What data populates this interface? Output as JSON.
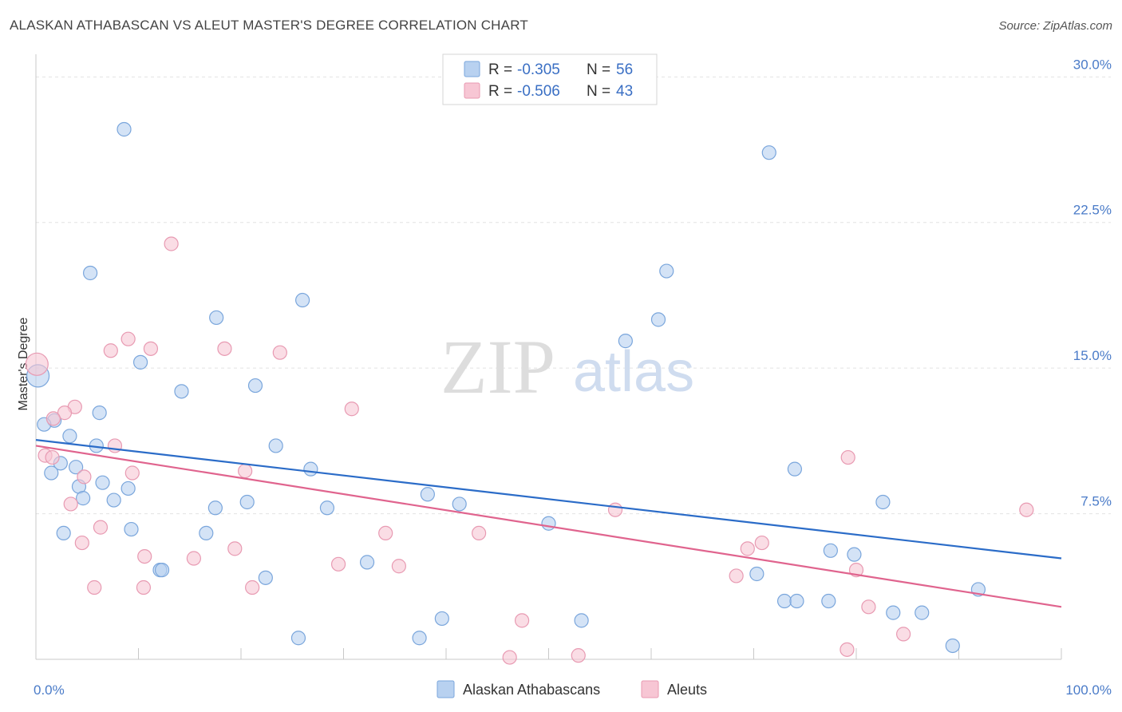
{
  "title": "ALASKAN ATHABASCAN VS ALEUT MASTER'S DEGREE CORRELATION CHART",
  "source": "Source: ZipAtlas.com",
  "watermark": {
    "zip": "ZIP",
    "atlas": "atlas"
  },
  "colors": {
    "athabascan_fill": "#b8d1f0",
    "athabascan_stroke": "#7aa6dc",
    "athabascan_line": "#2b6cc8",
    "aleut_fill": "#f7c6d4",
    "aleut_stroke": "#e89ab2",
    "aleut_line": "#e0648e",
    "grid": "#e2e2e2",
    "tick_text": "#4a7bc8"
  },
  "legend": {
    "rows": [
      {
        "r_label": "R = ",
        "r_value": "-0.305",
        "n_label": "N = ",
        "n_value": "56"
      },
      {
        "r_label": "R = ",
        "r_value": "-0.506",
        "n_label": "N = ",
        "n_value": "43"
      }
    ]
  },
  "bottom_legend": [
    "Alaskan Athabascans",
    "Aleuts"
  ],
  "chart_data": {
    "type": "scatter",
    "title": "ALASKAN ATHABASCAN VS ALEUT MASTER'S DEGREE CORRELATION CHART",
    "xlabel": "",
    "ylabel": "Master's Degree",
    "xlim": [
      0,
      100
    ],
    "ylim": [
      0,
      31
    ],
    "x_tick_labels": [
      "0.0%",
      "100.0%"
    ],
    "y_ticks": [
      7.5,
      15.0,
      22.5,
      30.0
    ],
    "y_tick_labels": [
      "7.5%",
      "15.0%",
      "22.5%",
      "30.0%"
    ],
    "grid": true,
    "legend_position": "top-center",
    "series": [
      {
        "name": "Alaskan Athabascans",
        "trend": {
          "x": [
            0,
            100
          ],
          "y": [
            11.3,
            5.2
          ]
        },
        "points": [
          {
            "x": 8.6,
            "y": 27.3
          },
          {
            "x": 71.5,
            "y": 26.1
          },
          {
            "x": 5.3,
            "y": 19.9
          },
          {
            "x": 61.5,
            "y": 20.0
          },
          {
            "x": 26.0,
            "y": 18.5
          },
          {
            "x": 17.6,
            "y": 17.6
          },
          {
            "x": 60.7,
            "y": 17.5
          },
          {
            "x": 57.5,
            "y": 16.4
          },
          {
            "x": 10.2,
            "y": 15.3
          },
          {
            "x": 0.2,
            "y": 14.6
          },
          {
            "x": 21.4,
            "y": 14.1
          },
          {
            "x": 14.2,
            "y": 13.8
          },
          {
            "x": 6.2,
            "y": 12.7
          },
          {
            "x": 1.8,
            "y": 12.3
          },
          {
            "x": 0.8,
            "y": 12.1
          },
          {
            "x": 3.3,
            "y": 11.5
          },
          {
            "x": 5.9,
            "y": 11.0
          },
          {
            "x": 23.4,
            "y": 11.0
          },
          {
            "x": 2.4,
            "y": 10.1
          },
          {
            "x": 3.9,
            "y": 9.9
          },
          {
            "x": 1.5,
            "y": 9.6
          },
          {
            "x": 26.8,
            "y": 9.8
          },
          {
            "x": 74.0,
            "y": 9.8
          },
          {
            "x": 6.5,
            "y": 9.1
          },
          {
            "x": 4.2,
            "y": 8.9
          },
          {
            "x": 9.0,
            "y": 8.8
          },
          {
            "x": 4.6,
            "y": 8.3
          },
          {
            "x": 7.6,
            "y": 8.2
          },
          {
            "x": 20.6,
            "y": 8.1
          },
          {
            "x": 38.2,
            "y": 8.5
          },
          {
            "x": 41.3,
            "y": 8.0
          },
          {
            "x": 82.6,
            "y": 8.1
          },
          {
            "x": 17.5,
            "y": 7.8
          },
          {
            "x": 28.4,
            "y": 7.8
          },
          {
            "x": 50.0,
            "y": 7.0
          },
          {
            "x": 2.7,
            "y": 6.5
          },
          {
            "x": 9.3,
            "y": 6.7
          },
          {
            "x": 16.6,
            "y": 6.5
          },
          {
            "x": 77.5,
            "y": 5.6
          },
          {
            "x": 79.8,
            "y": 5.4
          },
          {
            "x": 32.3,
            "y": 5.0
          },
          {
            "x": 12.1,
            "y": 4.6
          },
          {
            "x": 12.3,
            "y": 4.6
          },
          {
            "x": 22.4,
            "y": 4.2
          },
          {
            "x": 70.3,
            "y": 4.4
          },
          {
            "x": 91.9,
            "y": 3.6
          },
          {
            "x": 73.0,
            "y": 3.0
          },
          {
            "x": 74.2,
            "y": 3.0
          },
          {
            "x": 77.3,
            "y": 3.0
          },
          {
            "x": 83.6,
            "y": 2.4
          },
          {
            "x": 86.4,
            "y": 2.4
          },
          {
            "x": 39.6,
            "y": 2.1
          },
          {
            "x": 53.2,
            "y": 2.0
          },
          {
            "x": 25.6,
            "y": 1.1
          },
          {
            "x": 37.4,
            "y": 1.1
          },
          {
            "x": 89.4,
            "y": 0.7
          }
        ]
      },
      {
        "name": "Aleuts",
        "trend": {
          "x": [
            0,
            100
          ],
          "y": [
            11.0,
            2.7
          ]
        },
        "points": [
          {
            "x": 13.2,
            "y": 21.4
          },
          {
            "x": 9.0,
            "y": 16.5
          },
          {
            "x": 7.3,
            "y": 15.9
          },
          {
            "x": 11.2,
            "y": 16.0
          },
          {
            "x": 18.4,
            "y": 16.0
          },
          {
            "x": 23.8,
            "y": 15.8
          },
          {
            "x": 0.1,
            "y": 15.2
          },
          {
            "x": 3.8,
            "y": 13.0
          },
          {
            "x": 2.8,
            "y": 12.7
          },
          {
            "x": 30.8,
            "y": 12.9
          },
          {
            "x": 1.7,
            "y": 12.4
          },
          {
            "x": 7.7,
            "y": 11.0
          },
          {
            "x": 0.9,
            "y": 10.5
          },
          {
            "x": 1.6,
            "y": 10.4
          },
          {
            "x": 79.2,
            "y": 10.4
          },
          {
            "x": 20.4,
            "y": 9.7
          },
          {
            "x": 9.4,
            "y": 9.6
          },
          {
            "x": 4.7,
            "y": 9.4
          },
          {
            "x": 3.4,
            "y": 8.0
          },
          {
            "x": 56.5,
            "y": 7.7
          },
          {
            "x": 96.6,
            "y": 7.7
          },
          {
            "x": 6.3,
            "y": 6.8
          },
          {
            "x": 34.1,
            "y": 6.5
          },
          {
            "x": 43.2,
            "y": 6.5
          },
          {
            "x": 4.5,
            "y": 6.0
          },
          {
            "x": 70.8,
            "y": 6.0
          },
          {
            "x": 19.4,
            "y": 5.7
          },
          {
            "x": 69.4,
            "y": 5.7
          },
          {
            "x": 10.6,
            "y": 5.3
          },
          {
            "x": 15.4,
            "y": 5.2
          },
          {
            "x": 29.5,
            "y": 4.9
          },
          {
            "x": 35.4,
            "y": 4.8
          },
          {
            "x": 80.0,
            "y": 4.6
          },
          {
            "x": 68.3,
            "y": 4.3
          },
          {
            "x": 5.7,
            "y": 3.7
          },
          {
            "x": 10.5,
            "y": 3.7
          },
          {
            "x": 21.1,
            "y": 3.7
          },
          {
            "x": 81.2,
            "y": 2.7
          },
          {
            "x": 47.4,
            "y": 2.0
          },
          {
            "x": 84.6,
            "y": 1.3
          },
          {
            "x": 79.1,
            "y": 0.5
          },
          {
            "x": 52.9,
            "y": 0.2
          },
          {
            "x": 46.2,
            "y": 0.1
          }
        ]
      }
    ]
  }
}
